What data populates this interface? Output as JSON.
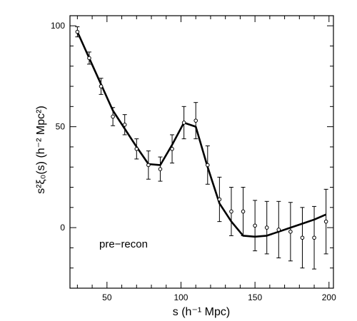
{
  "chart_data": {
    "type": "line",
    "xlabel": "s (h⁻¹ Mpc)",
    "ylabel": "s²ξ₀(s)  (h⁻² Mpc²)",
    "annotation": "pre−recon",
    "xlim": [
      25,
      203
    ],
    "ylim": [
      -30,
      105
    ],
    "x_ticks": [
      50,
      100,
      150,
      200
    ],
    "y_ticks": [
      0,
      50,
      100
    ],
    "grid": false,
    "points": [
      {
        "x": 30,
        "y": 97,
        "err": 2.5
      },
      {
        "x": 38,
        "y": 84,
        "err": 3
      },
      {
        "x": 46,
        "y": 70,
        "err": 4
      },
      {
        "x": 54,
        "y": 55,
        "err": 4.5
      },
      {
        "x": 62,
        "y": 51,
        "err": 5
      },
      {
        "x": 70,
        "y": 39,
        "err": 5
      },
      {
        "x": 78,
        "y": 31,
        "err": 7
      },
      {
        "x": 86,
        "y": 29,
        "err": 6
      },
      {
        "x": 94,
        "y": 39,
        "err": 7
      },
      {
        "x": 102,
        "y": 52,
        "err": 8
      },
      {
        "x": 110,
        "y": 53,
        "err": 9
      },
      {
        "x": 118,
        "y": 31,
        "err": 9.5
      },
      {
        "x": 126,
        "y": 14,
        "err": 11
      },
      {
        "x": 134,
        "y": 8,
        "err": 12
      },
      {
        "x": 142,
        "y": 8,
        "err": 12
      },
      {
        "x": 150,
        "y": 1,
        "err": 12.5
      },
      {
        "x": 158,
        "y": 0,
        "err": 13
      },
      {
        "x": 166,
        "y": -1,
        "err": 14
      },
      {
        "x": 174,
        "y": -2,
        "err": 14.5
      },
      {
        "x": 182,
        "y": -5,
        "err": 15
      },
      {
        "x": 190,
        "y": -5,
        "err": 15.5
      },
      {
        "x": 198,
        "y": 3,
        "err": 16
      }
    ],
    "model_line": {
      "x": [
        30,
        38,
        46,
        54,
        62,
        70,
        78,
        86,
        94,
        102,
        110,
        118,
        126,
        134,
        142,
        150,
        158,
        166,
        174,
        182,
        190,
        198
      ],
      "y": [
        97,
        84,
        71,
        58,
        49,
        40,
        31.5,
        31,
        41,
        52,
        50,
        30,
        12,
        3,
        -4,
        -4.5,
        -4,
        -2,
        0,
        2,
        4,
        6.5
      ]
    }
  }
}
